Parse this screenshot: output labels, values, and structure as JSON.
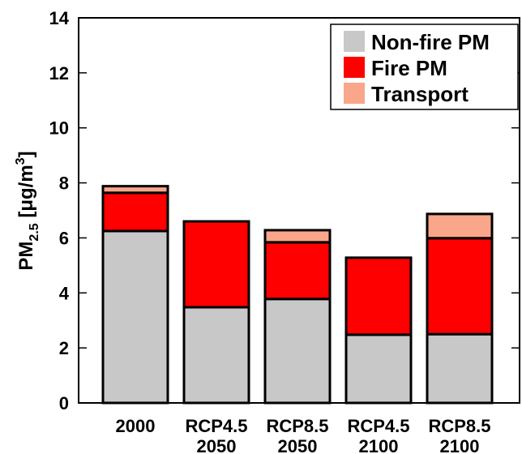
{
  "chart_data": {
    "type": "stacked_bar",
    "y_label": {
      "base": "PM",
      "sub": "2.5",
      "mid": " [μg/m",
      "sup": "3",
      "end": "]"
    },
    "categories": [
      "2000",
      "RCP4.5 2050",
      "RCP8.5 2050",
      "RCP4.5 2100",
      "RCP8.5 2100"
    ],
    "series": [
      {
        "name": "Non-fire PM",
        "color": "#c8c8c8",
        "values": [
          6.25,
          3.48,
          3.78,
          2.48,
          2.5
        ]
      },
      {
        "name": "Fire PM",
        "color": "#ff0000",
        "values": [
          1.39,
          3.12,
          2.06,
          2.8,
          3.49
        ]
      },
      {
        "name": "Transport",
        "color": "#f9a68a",
        "values": [
          0.24,
          0,
          0.44,
          0,
          0.88
        ]
      }
    ],
    "ylim": [
      0,
      14
    ],
    "yticks": [
      0,
      2,
      4,
      6,
      8,
      10,
      12,
      14
    ],
    "legend": "top-right"
  }
}
